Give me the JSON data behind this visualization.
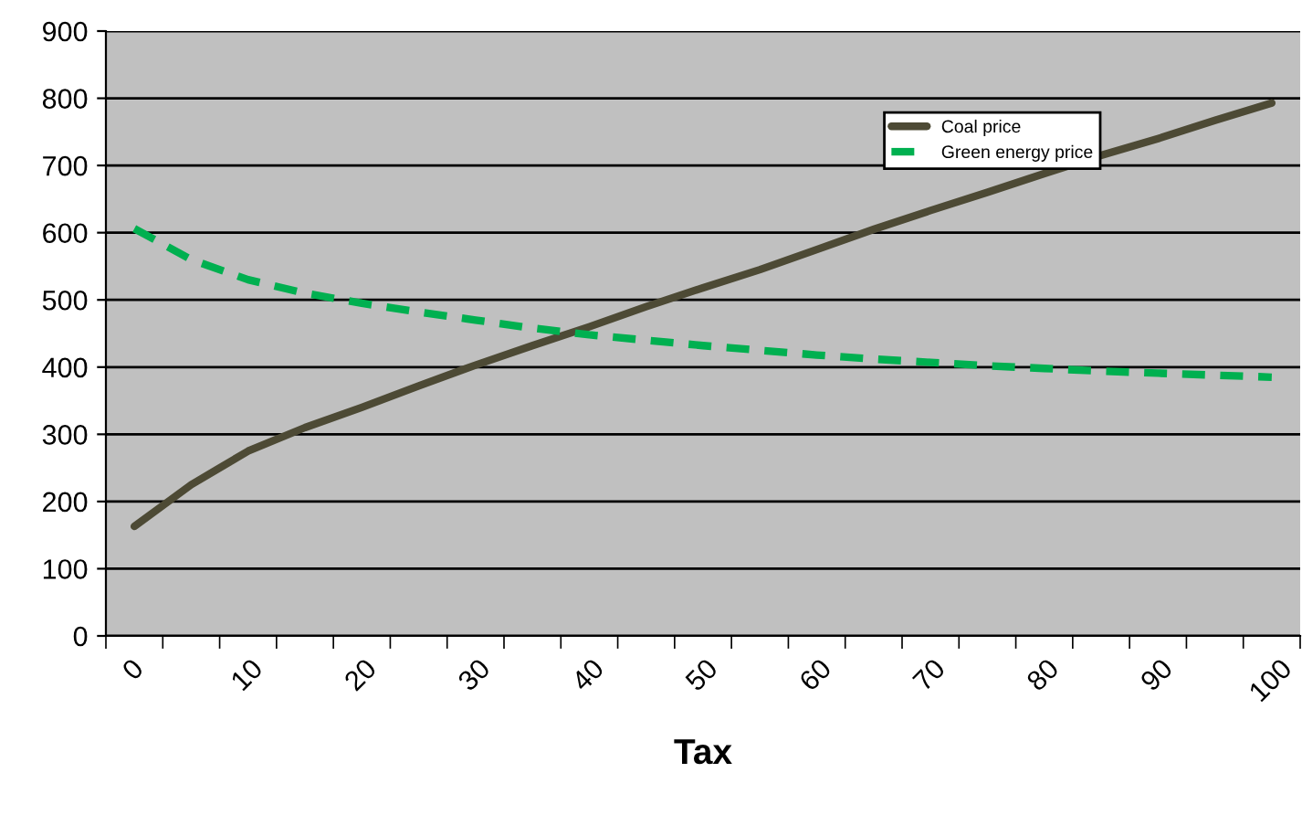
{
  "chart_data": {
    "type": "line",
    "xlabel": "Tax",
    "categories": [
      "0",
      null,
      "10",
      null,
      "20",
      null,
      "30",
      null,
      "40",
      null,
      "50",
      null,
      "60",
      null,
      "70",
      null,
      "80",
      null,
      "90",
      null,
      "100"
    ],
    "series": [
      {
        "name": "Coal price",
        "color": "#4d4a35",
        "line_style": "solid",
        "values": [
          163,
          225,
          275,
          310,
          340,
          372,
          403,
          432,
          460,
          490,
          518,
          545,
          575,
          605,
          633,
          660,
          688,
          715,
          740,
          767,
          793
        ]
      },
      {
        "name": "Green energy price",
        "color": "#00b050",
        "line_style": "dashed",
        "values": [
          606,
          560,
          530,
          510,
          495,
          482,
          470,
          458,
          448,
          440,
          432,
          425,
          418,
          412,
          407,
          402,
          398,
          394,
          391,
          388,
          385
        ]
      }
    ],
    "ylim": [
      0,
      900
    ],
    "yticks": [
      0,
      100,
      200,
      300,
      400,
      500,
      600,
      700,
      800,
      900
    ],
    "grid": "y",
    "legend": "top right",
    "marker": "none"
  }
}
